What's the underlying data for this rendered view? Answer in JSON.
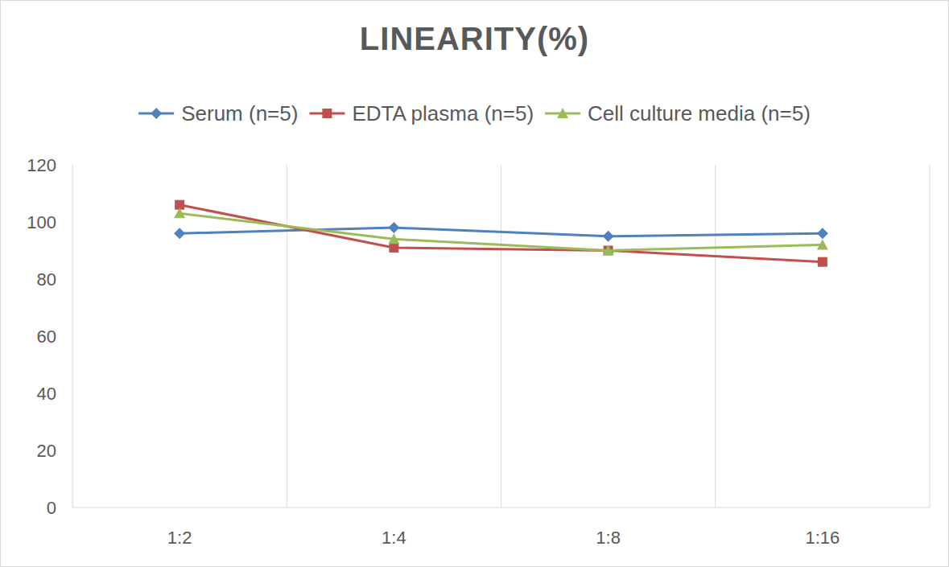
{
  "chart_data": {
    "type": "line",
    "title": "LINEARITY(%)",
    "categories": [
      "1:2",
      "1:4",
      "1:8",
      "1:16"
    ],
    "series": [
      {
        "name": "Serum (n=5)",
        "color": "#4f81bd",
        "marker": "diamond",
        "values": [
          96,
          98,
          95,
          96
        ]
      },
      {
        "name": "EDTA plasma (n=5)",
        "color": "#c0504d",
        "marker": "square",
        "values": [
          106,
          91,
          90,
          86
        ]
      },
      {
        "name": "Cell culture media (n=5)",
        "color": "#9bbb59",
        "marker": "triangle",
        "values": [
          103,
          94,
          90,
          92
        ]
      }
    ],
    "ylim": [
      0,
      120
    ],
    "yticks": [
      0,
      20,
      40,
      60,
      80,
      100,
      120
    ],
    "grid": true,
    "legend": "top"
  }
}
